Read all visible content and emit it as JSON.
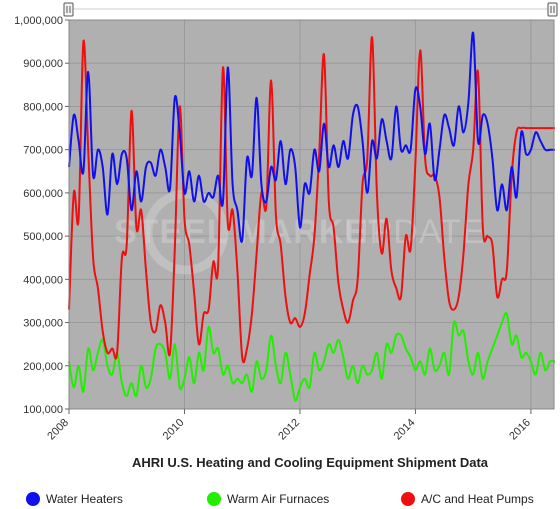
{
  "chart_data": {
    "type": "line",
    "title": "AHRI U.S. Heating and Cooling Equipment Shipment Data",
    "watermark": {
      "bold": "STEEL MARKET",
      "thin": "UPDATE"
    },
    "xlim": [
      2008,
      2016.4
    ],
    "ylim": [
      100000,
      1000000
    ],
    "x_ticks": [
      2008,
      2010,
      2012,
      2014,
      2016
    ],
    "x_tick_labels": [
      "2008",
      "2010",
      "2012",
      "2014",
      "2016"
    ],
    "y_ticks": [
      100000,
      200000,
      300000,
      400000,
      500000,
      600000,
      700000,
      800000,
      900000,
      1000000
    ],
    "y_tick_labels": [
      "100,000",
      "200,000",
      "300,000",
      "400,000",
      "500,000",
      "600,000",
      "700,000",
      "800,000",
      "900,000",
      "1,000,000"
    ],
    "background": "#b0b0b0",
    "grid": true,
    "legend_position": "bottom",
    "series": [
      {
        "name": "Water Heaters",
        "color": "#1010ee",
        "x": [
          2008.0,
          2008.083,
          2008.167,
          2008.25,
          2008.333,
          2008.417,
          2008.5,
          2008.583,
          2008.667,
          2008.75,
          2008.833,
          2008.917,
          2009.0,
          2009.083,
          2009.167,
          2009.25,
          2009.333,
          2009.417,
          2009.5,
          2009.583,
          2009.667,
          2009.75,
          2009.833,
          2009.917,
          2010.0,
          2010.083,
          2010.167,
          2010.25,
          2010.333,
          2010.417,
          2010.5,
          2010.583,
          2010.667,
          2010.75,
          2010.833,
          2010.917,
          2011.0,
          2011.083,
          2011.167,
          2011.25,
          2011.333,
          2011.417,
          2011.5,
          2011.583,
          2011.667,
          2011.75,
          2011.833,
          2011.917,
          2012.0,
          2012.083,
          2012.167,
          2012.25,
          2012.333,
          2012.417,
          2012.5,
          2012.583,
          2012.667,
          2012.75,
          2012.833,
          2012.917,
          2013.0,
          2013.083,
          2013.167,
          2013.25,
          2013.333,
          2013.417,
          2013.5,
          2013.583,
          2013.667,
          2013.75,
          2013.833,
          2013.917,
          2014.0,
          2014.083,
          2014.167,
          2014.25,
          2014.333,
          2014.417,
          2014.5,
          2014.583,
          2014.667,
          2014.75,
          2014.833,
          2014.917,
          2015.0,
          2015.083,
          2015.167,
          2015.25,
          2015.333,
          2015.417,
          2015.5,
          2015.583,
          2015.667,
          2015.75,
          2015.833,
          2015.917,
          2016.0,
          2016.083,
          2016.167,
          2016.25,
          2016.333,
          2016.417
        ],
        "y": [
          660000,
          780000,
          720000,
          650000,
          880000,
          640000,
          700000,
          660000,
          550000,
          690000,
          620000,
          690000,
          680000,
          560000,
          650000,
          580000,
          660000,
          670000,
          640000,
          700000,
          660000,
          610000,
          820000,
          740000,
          600000,
          650000,
          580000,
          640000,
          580000,
          600000,
          590000,
          640000,
          580000,
          890000,
          620000,
          560000,
          490000,
          680000,
          640000,
          820000,
          620000,
          580000,
          660000,
          630000,
          720000,
          620000,
          700000,
          660000,
          520000,
          620000,
          600000,
          700000,
          650000,
          760000,
          660000,
          710000,
          660000,
          720000,
          680000,
          780000,
          800000,
          720000,
          600000,
          720000,
          680000,
          770000,
          720000,
          680000,
          800000,
          700000,
          710000,
          700000,
          840000,
          800000,
          690000,
          760000,
          630000,
          700000,
          780000,
          750000,
          710000,
          800000,
          740000,
          810000,
          970000,
          720000,
          780000,
          760000,
          680000,
          560000,
          620000,
          560000,
          660000,
          590000,
          740000,
          690000,
          700000,
          740000,
          720000,
          700000,
          700000,
          700000
        ]
      },
      {
        "name": "Warm Air Furnaces",
        "color": "#22ee00",
        "x": [
          2008.0,
          2008.083,
          2008.167,
          2008.25,
          2008.333,
          2008.417,
          2008.5,
          2008.583,
          2008.667,
          2008.75,
          2008.833,
          2008.917,
          2009.0,
          2009.083,
          2009.167,
          2009.25,
          2009.333,
          2009.417,
          2009.5,
          2009.583,
          2009.667,
          2009.75,
          2009.833,
          2009.917,
          2010.0,
          2010.083,
          2010.167,
          2010.25,
          2010.333,
          2010.417,
          2010.5,
          2010.583,
          2010.667,
          2010.75,
          2010.833,
          2010.917,
          2011.0,
          2011.083,
          2011.167,
          2011.25,
          2011.333,
          2011.417,
          2011.5,
          2011.583,
          2011.667,
          2011.75,
          2011.833,
          2011.917,
          2012.0,
          2012.083,
          2012.167,
          2012.25,
          2012.333,
          2012.417,
          2012.5,
          2012.583,
          2012.667,
          2012.75,
          2012.833,
          2012.917,
          2013.0,
          2013.083,
          2013.167,
          2013.25,
          2013.333,
          2013.417,
          2013.5,
          2013.583,
          2013.667,
          2013.75,
          2013.833,
          2013.917,
          2014.0,
          2014.083,
          2014.167,
          2014.25,
          2014.333,
          2014.417,
          2014.5,
          2014.583,
          2014.667,
          2014.75,
          2014.833,
          2014.917,
          2015.0,
          2015.083,
          2015.167,
          2015.25,
          2015.333,
          2015.417,
          2015.5,
          2015.583,
          2015.667,
          2015.75,
          2015.833,
          2015.917,
          2016.0,
          2016.083,
          2016.167,
          2016.25,
          2016.333,
          2016.417
        ],
        "y": [
          210000,
          150000,
          200000,
          140000,
          240000,
          190000,
          230000,
          260000,
          200000,
          180000,
          230000,
          160000,
          130000,
          160000,
          130000,
          200000,
          150000,
          170000,
          240000,
          250000,
          230000,
          170000,
          250000,
          150000,
          170000,
          220000,
          160000,
          230000,
          190000,
          290000,
          230000,
          240000,
          180000,
          200000,
          160000,
          170000,
          160000,
          180000,
          140000,
          210000,
          170000,
          190000,
          270000,
          200000,
          160000,
          230000,
          180000,
          120000,
          150000,
          170000,
          150000,
          230000,
          190000,
          210000,
          250000,
          230000,
          260000,
          220000,
          170000,
          200000,
          160000,
          200000,
          180000,
          190000,
          230000,
          170000,
          250000,
          230000,
          270000,
          270000,
          240000,
          220000,
          190000,
          210000,
          180000,
          240000,
          190000,
          200000,
          230000,
          180000,
          300000,
          270000,
          280000,
          210000,
          180000,
          230000,
          170000,
          210000,
          240000,
          270000,
          300000,
          320000,
          250000,
          270000,
          220000,
          230000,
          210000,
          180000,
          230000,
          190000,
          210000,
          210000
        ]
      },
      {
        "name": "A/C and Heat Pumps",
        "color": "#ee1010",
        "x": [
          2008.0,
          2008.083,
          2008.167,
          2008.25,
          2008.333,
          2008.417,
          2008.5,
          2008.583,
          2008.667,
          2008.75,
          2008.833,
          2008.917,
          2009.0,
          2009.083,
          2009.167,
          2009.25,
          2009.333,
          2009.417,
          2009.5,
          2009.583,
          2009.667,
          2009.75,
          2009.833,
          2009.917,
          2010.0,
          2010.083,
          2010.167,
          2010.25,
          2010.333,
          2010.417,
          2010.5,
          2010.583,
          2010.667,
          2010.75,
          2010.833,
          2010.917,
          2011.0,
          2011.083,
          2011.167,
          2011.25,
          2011.333,
          2011.417,
          2011.5,
          2011.583,
          2011.667,
          2011.75,
          2011.833,
          2011.917,
          2012.0,
          2012.083,
          2012.167,
          2012.25,
          2012.333,
          2012.417,
          2012.5,
          2012.583,
          2012.667,
          2012.75,
          2012.833,
          2012.917,
          2013.0,
          2013.083,
          2013.167,
          2013.25,
          2013.333,
          2013.417,
          2013.5,
          2013.583,
          2013.667,
          2013.75,
          2013.833,
          2013.917,
          2014.0,
          2014.083,
          2014.167,
          2014.25,
          2014.333,
          2014.417,
          2014.5,
          2014.583,
          2014.667,
          2014.75,
          2014.833,
          2014.917,
          2015.0,
          2015.083,
          2015.167,
          2015.25,
          2015.333,
          2015.417,
          2015.5,
          2015.583,
          2015.667,
          2015.75,
          2015.833,
          2015.917,
          2016.0,
          2016.083,
          2016.167,
          2016.25,
          2016.333,
          2016.417
        ],
        "y": [
          330000,
          600000,
          540000,
          950000,
          700000,
          450000,
          380000,
          280000,
          230000,
          240000,
          230000,
          450000,
          480000,
          790000,
          520000,
          560000,
          420000,
          300000,
          280000,
          340000,
          300000,
          230000,
          470000,
          800000,
          540000,
          480000,
          370000,
          250000,
          320000,
          330000,
          440000,
          430000,
          890000,
          530000,
          560000,
          420000,
          220000,
          240000,
          320000,
          460000,
          600000,
          570000,
          860000,
          550000,
          480000,
          360000,
          300000,
          310000,
          290000,
          320000,
          410000,
          500000,
          690000,
          920000,
          580000,
          520000,
          390000,
          330000,
          300000,
          350000,
          400000,
          620000,
          680000,
          960000,
          600000,
          460000,
          540000,
          420000,
          380000,
          360000,
          500000,
          470000,
          670000,
          930000,
          680000,
          640000,
          640000,
          590000,
          450000,
          350000,
          330000,
          360000,
          460000,
          620000,
          700000,
          880000,
          520000,
          500000,
          480000,
          360000,
          400000,
          420000,
          640000,
          740000,
          750000,
          750000,
          750000,
          750000,
          750000,
          750000,
          750000,
          750000
        ]
      }
    ]
  }
}
